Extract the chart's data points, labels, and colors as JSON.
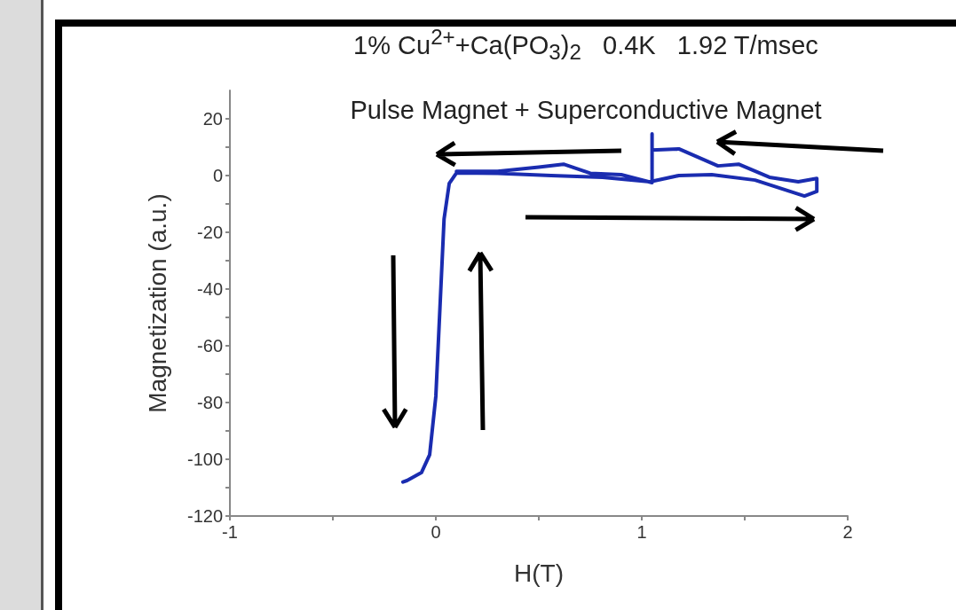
{
  "chart_data": {
    "type": "line",
    "title": "1% Cu$^{2+}$+Ca(PO$_{3}$)$_{2}$   0.4K   1.92 T/msec",
    "subtitle": "Pulse Magnet + Superconductive Magnet",
    "xlabel": "H(T)",
    "ylabel": "Magnetization (a.u.)",
    "series": [
      {
        "color": "#1a2cb0",
        "x": [
          -0.16,
          -0.14,
          -0.07,
          -0.03,
          0,
          0.02,
          0.04,
          0.065,
          0.1,
          0.3,
          0.56,
          0.81,
          1.04,
          1.18,
          1.34,
          1.55,
          1.79,
          1.85,
          1.85,
          1.76,
          1.62,
          1.47,
          1.37,
          1.18,
          1.05,
          1.05,
          1.05,
          1.05,
          0.9,
          0.75,
          0.62,
          0.5,
          0.3,
          0.1
        ],
        "values": [
          -108,
          -107.5,
          -104.7,
          -98.4,
          -77.8,
          -46.6,
          -15.3,
          -2.8,
          0.9,
          0.8,
          0,
          -0.6,
          -2.2,
          0,
          0.3,
          -1.6,
          -7.2,
          -5.6,
          -1,
          -2.2,
          -0.6,
          4,
          3.4,
          9.4,
          9,
          14.7,
          9,
          -2.5,
          0.3,
          0.8,
          4,
          3,
          1.5,
          1.5
        ]
      }
    ],
    "xlim": [
      -1,
      2
    ],
    "xticks": [
      -1,
      {
        "value": -0.5,
        "label": null
      },
      0,
      {
        "value": 0.5,
        "label": null
      },
      1,
      {
        "value": 1.5,
        "label": null
      },
      2
    ],
    "ylim": [
      -120,
      30
    ],
    "yticks": [
      -120,
      {
        "value": -110,
        "label": null
      },
      -100,
      {
        "value": -90,
        "label": null
      },
      -80,
      {
        "value": -70,
        "label": null
      },
      -60,
      {
        "value": -50,
        "label": null
      },
      -40,
      {
        "value": -30,
        "label": null
      },
      -20,
      {
        "value": -10,
        "label": null
      },
      0,
      {
        "value": 10,
        "label": null
      },
      20
    ],
    "grid": false,
    "marker": "none",
    "line_style": "solid"
  }
}
